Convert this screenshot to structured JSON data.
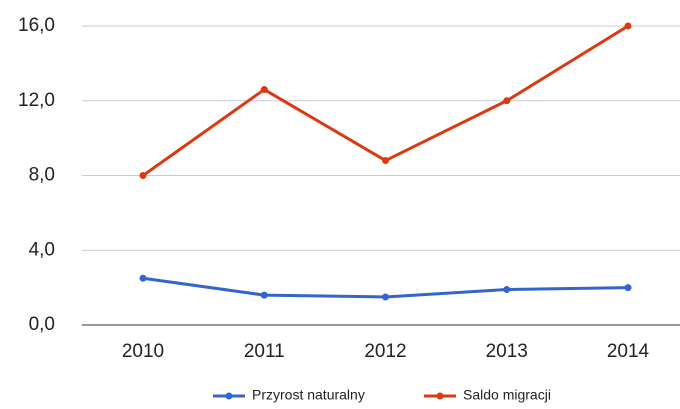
{
  "chart_data": {
    "type": "line",
    "categories": [
      "2010",
      "2011",
      "2012",
      "2013",
      "2014"
    ],
    "series": [
      {
        "name": "Przyrost naturalny",
        "color": "#3366cc",
        "values": [
          2.5,
          1.6,
          1.5,
          1.9,
          2.0
        ]
      },
      {
        "name": "Saldo migracji",
        "color": "#dc3912",
        "values": [
          8.0,
          12.6,
          8.8,
          12.0,
          16.0
        ]
      }
    ],
    "ylim": [
      0,
      16
    ],
    "yticks": [
      {
        "value": 0,
        "label": "0,0"
      },
      {
        "value": 4,
        "label": "4,0"
      },
      {
        "value": 8,
        "label": "8,0"
      },
      {
        "value": 12,
        "label": "12,0"
      },
      {
        "value": 16,
        "label": "16,0"
      }
    ],
    "grid": true,
    "legend": "bottom"
  }
}
